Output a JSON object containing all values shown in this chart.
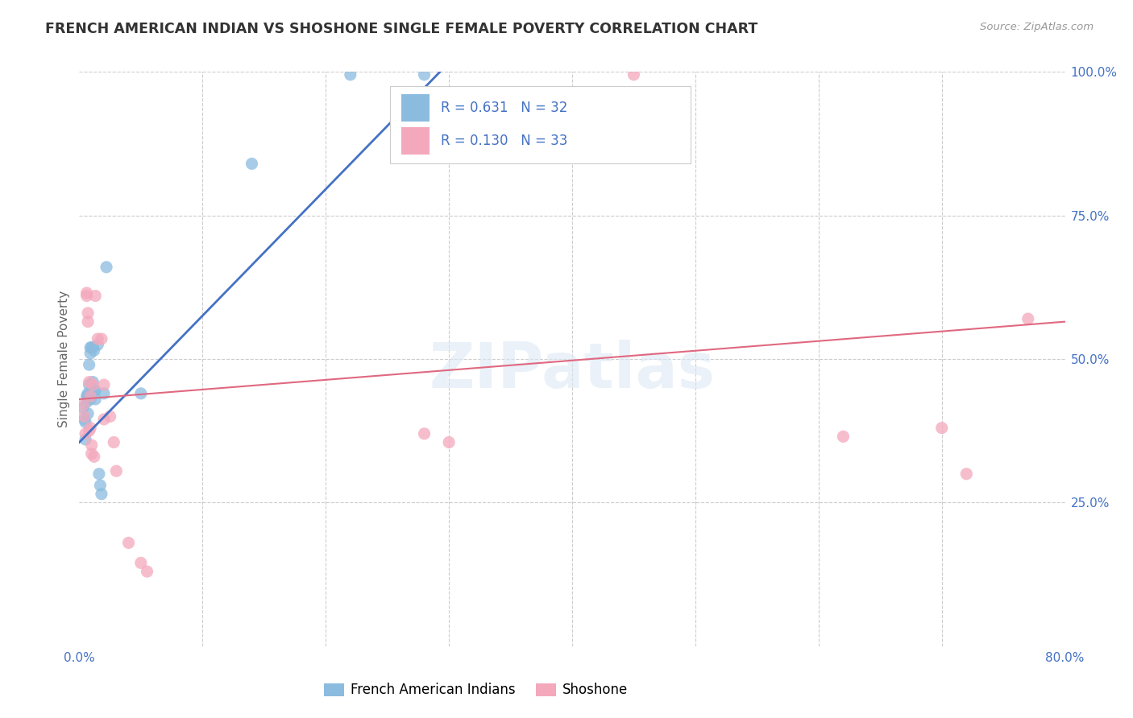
{
  "title": "FRENCH AMERICAN INDIAN VS SHOSHONE SINGLE FEMALE POVERTY CORRELATION CHART",
  "source": "Source: ZipAtlas.com",
  "ylabel": "Single Female Poverty",
  "xlim": [
    0,
    0.8
  ],
  "ylim": [
    0,
    1.0
  ],
  "xticks": [
    0.0,
    0.1,
    0.2,
    0.3,
    0.4,
    0.5,
    0.6,
    0.7,
    0.8
  ],
  "xticklabels": [
    "0.0%",
    "",
    "",
    "",
    "",
    "",
    "",
    "",
    "80.0%"
  ],
  "yticks": [
    0.0,
    0.25,
    0.5,
    0.75,
    1.0
  ],
  "yticklabels": [
    "",
    "25.0%",
    "50.0%",
    "75.0%",
    "100.0%"
  ],
  "blue_R": 0.631,
  "blue_N": 32,
  "pink_R": 0.13,
  "pink_N": 33,
  "blue_color": "#8BBCDF",
  "pink_color": "#F4A8BC",
  "blue_line_color": "#4472C4",
  "pink_line_color": "#E06880",
  "watermark": "ZIPatlas",
  "background_color": "#ffffff",
  "grid_color": "#cccccc",
  "blue_scatter_x": [
    0.003,
    0.004,
    0.005,
    0.005,
    0.006,
    0.006,
    0.007,
    0.007,
    0.007,
    0.008,
    0.008,
    0.009,
    0.009,
    0.009,
    0.01,
    0.01,
    0.011,
    0.011,
    0.012,
    0.012,
    0.013,
    0.013,
    0.015,
    0.016,
    0.017,
    0.018,
    0.02,
    0.022,
    0.05,
    0.14,
    0.22,
    0.28
  ],
  "blue_scatter_y": [
    0.415,
    0.395,
    0.39,
    0.36,
    0.435,
    0.425,
    0.44,
    0.435,
    0.405,
    0.49,
    0.455,
    0.52,
    0.51,
    0.43,
    0.52,
    0.44,
    0.52,
    0.46,
    0.515,
    0.445,
    0.445,
    0.43,
    0.525,
    0.3,
    0.28,
    0.265,
    0.44,
    0.66,
    0.44,
    0.84,
    0.995,
    0.995
  ],
  "pink_scatter_x": [
    0.003,
    0.004,
    0.005,
    0.006,
    0.006,
    0.007,
    0.007,
    0.008,
    0.008,
    0.009,
    0.009,
    0.01,
    0.01,
    0.011,
    0.012,
    0.013,
    0.015,
    0.018,
    0.02,
    0.02,
    0.025,
    0.028,
    0.03,
    0.04,
    0.05,
    0.055,
    0.28,
    0.3,
    0.45,
    0.62,
    0.7,
    0.72,
    0.77
  ],
  "pink_scatter_y": [
    0.42,
    0.4,
    0.37,
    0.615,
    0.61,
    0.58,
    0.565,
    0.46,
    0.375,
    0.435,
    0.38,
    0.35,
    0.335,
    0.455,
    0.33,
    0.61,
    0.535,
    0.535,
    0.395,
    0.455,
    0.4,
    0.355,
    0.305,
    0.18,
    0.145,
    0.13,
    0.37,
    0.355,
    0.995,
    0.365,
    0.38,
    0.3,
    0.57
  ],
  "blue_line_x": [
    0.0,
    0.295
  ],
  "blue_line_y": [
    0.355,
    1.005
  ],
  "pink_line_x": [
    0.0,
    0.8
  ],
  "pink_line_y": [
    0.43,
    0.565
  ],
  "marker_size": 120
}
